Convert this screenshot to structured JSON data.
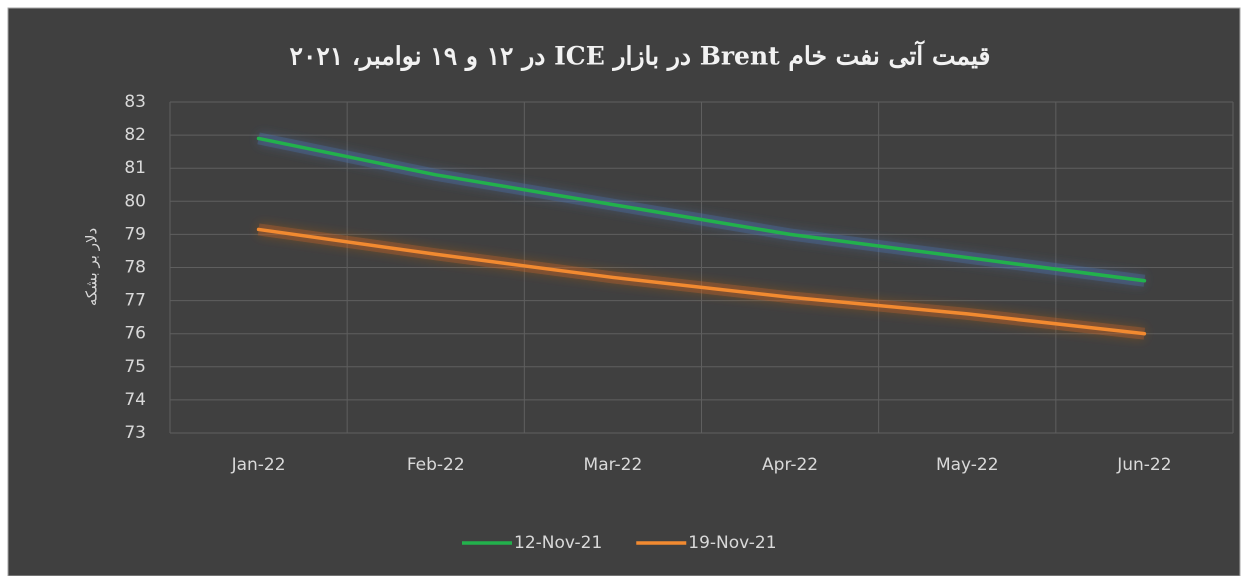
{
  "chart_data": {
    "type": "line",
    "title": "قیمت آتی نفت خام  Brent در بازار ICE در ۱۲ و ۱۹ نوامبر، ۲۰۲۱",
    "y_label": "دلار بر بشکه",
    "categories": [
      "Jan-22",
      "Feb-22",
      "Mar-22",
      "Apr-22",
      "May-22",
      "Jun-22"
    ],
    "series": [
      {
        "name": "12-Nov-21",
        "color": "#22b14c",
        "values": [
          81.9,
          80.8,
          79.9,
          79.0,
          78.3,
          77.6
        ]
      },
      {
        "name": "19-Nov-21",
        "color": "#f28a30",
        "values": [
          79.15,
          78.4,
          77.7,
          77.1,
          76.6,
          76.0
        ]
      }
    ],
    "ylim": [
      73,
      83
    ],
    "yticks": [
      73,
      74,
      75,
      76,
      77,
      78,
      79,
      80,
      81,
      82,
      83
    ],
    "grid": true,
    "legend": "bottom"
  }
}
